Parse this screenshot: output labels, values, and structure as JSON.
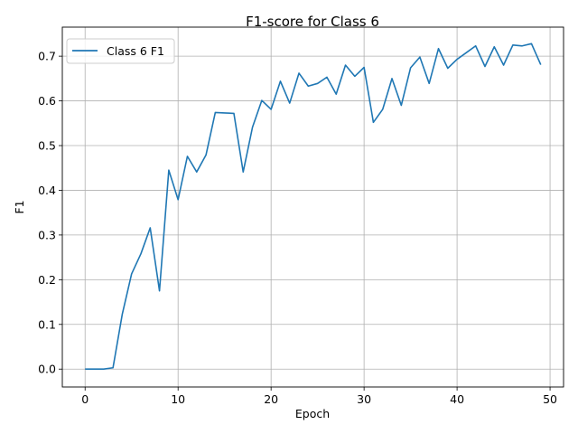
{
  "chart_data": {
    "type": "line",
    "title": "F1-score for Class 6",
    "xlabel": "Epoch",
    "ylabel": "F1",
    "xlim": [
      -2.45,
      51.45
    ],
    "ylim": [
      -0.04,
      0.765
    ],
    "xticks": [
      0,
      10,
      20,
      30,
      40,
      50
    ],
    "yticks": [
      0.0,
      0.1,
      0.2,
      0.3,
      0.4,
      0.5,
      0.6,
      0.7
    ],
    "grid": true,
    "legend_position": "top-left",
    "series": [
      {
        "name": "Class 6 F1",
        "color": "#1f77b4",
        "x": [
          0,
          1,
          2,
          3,
          4,
          5,
          6,
          7,
          8,
          9,
          10,
          11,
          12,
          13,
          14,
          15,
          16,
          17,
          18,
          19,
          20,
          21,
          22,
          23,
          24,
          25,
          26,
          27,
          28,
          29,
          30,
          31,
          32,
          33,
          34,
          35,
          36,
          37,
          38,
          39,
          40,
          41,
          42,
          43,
          44,
          45,
          46,
          47,
          48,
          49
        ],
        "y": [
          0.0,
          0.0,
          0.0,
          0.003,
          0.123,
          0.213,
          0.258,
          0.316,
          0.175,
          0.445,
          0.379,
          0.476,
          0.441,
          0.479,
          0.574,
          0.573,
          0.572,
          0.441,
          0.541,
          0.601,
          0.581,
          0.644,
          0.595,
          0.662,
          0.633,
          0.639,
          0.653,
          0.615,
          0.68,
          0.655,
          0.675,
          0.552,
          0.581,
          0.65,
          0.59,
          0.674,
          0.698,
          0.639,
          0.717,
          0.673,
          0.693,
          0.708,
          0.723,
          0.677,
          0.721,
          0.68,
          0.725,
          0.723,
          0.728,
          0.681
        ]
      }
    ]
  }
}
